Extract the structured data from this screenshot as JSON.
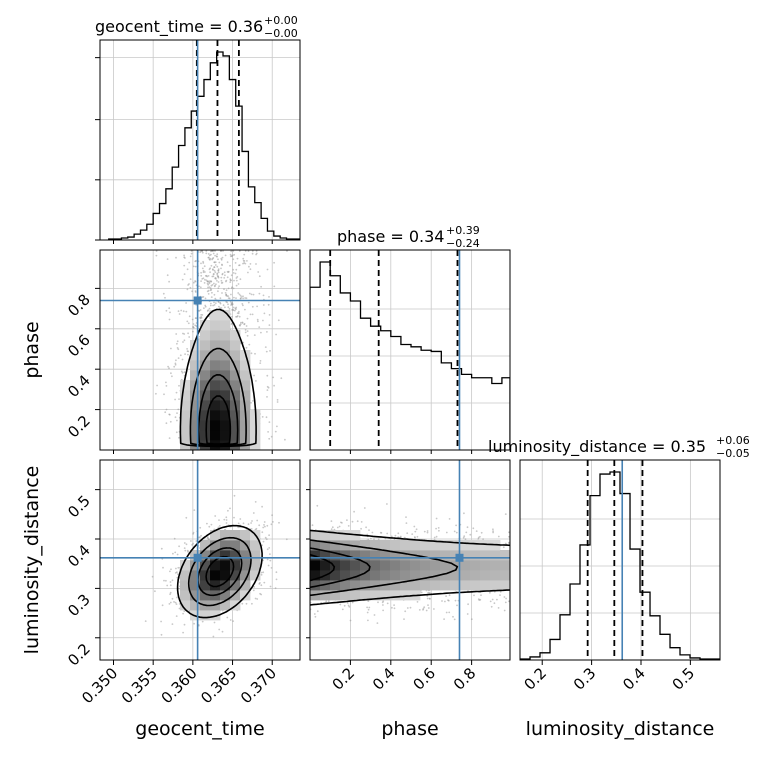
{
  "chart_data": {
    "type": "corner",
    "parameters": [
      {
        "name": "geocent_time",
        "axis_label": "geocent_time",
        "title_prefix": "geocent_time = ",
        "median": "0.36",
        "plus": "+0.00",
        "minus": "−0.00",
        "range": [
          0.3483,
          0.3735
        ],
        "ticks": [
          0.35,
          0.355,
          0.36,
          0.365,
          0.37
        ],
        "tick_labels": [
          "0.350",
          "0.355",
          "0.360",
          "0.365",
          "0.370"
        ],
        "truth": 0.3606,
        "quantiles": [
          0.3605,
          0.3631,
          0.3658
        ]
      },
      {
        "name": "phase",
        "axis_label": "phase",
        "title_prefix": "phase = ",
        "median": "0.34",
        "plus": "+0.39",
        "minus": "−0.24",
        "range": [
          0.0,
          0.99
        ],
        "ticks": [
          0.2,
          0.4,
          0.6,
          0.8
        ],
        "tick_labels": [
          "0.2",
          "0.4",
          "0.6",
          "0.8"
        ],
        "truth": 0.74,
        "quantiles": [
          0.1,
          0.34,
          0.73
        ]
      },
      {
        "name": "luminosity_distance",
        "axis_label": "luminosity_distance",
        "title_prefix": "luminosity_distance = ",
        "median": "0.35",
        "plus": "+0.06",
        "minus": "−0.05",
        "range": [
          0.155,
          0.56
        ],
        "ticks": [
          0.2,
          0.3,
          0.4,
          0.5
        ],
        "tick_labels": [
          "0.2",
          "0.3",
          "0.4",
          "0.5"
        ],
        "truth": 0.362,
        "quantiles": [
          0.292,
          0.346,
          0.403
        ]
      }
    ],
    "histograms_1d": [
      {
        "param": "geocent_time",
        "bin_edges": [
          0.3494,
          0.3502,
          0.351,
          0.3518,
          0.3526,
          0.3534,
          0.3542,
          0.355,
          0.3558,
          0.3566,
          0.3574,
          0.3582,
          0.359,
          0.3598,
          0.3606,
          0.3614,
          0.3622,
          0.363,
          0.3638,
          0.3646,
          0.3654,
          0.3662,
          0.367,
          0.3678,
          0.3686,
          0.3694,
          0.3702,
          0.371,
          0.3718,
          0.3726,
          0.3735
        ],
        "counts": [
          1,
          1,
          2,
          3,
          6,
          10,
          16,
          27,
          37,
          52,
          74,
          96,
          114,
          131,
          146,
          163,
          180,
          191,
          187,
          163,
          136,
          90,
          54,
          38,
          22,
          9,
          4,
          2,
          1,
          1
        ]
      },
      {
        "param": "phase",
        "bin_edges": [
          0.0,
          0.05,
          0.1,
          0.15,
          0.2,
          0.25,
          0.3,
          0.35,
          0.4,
          0.45,
          0.5,
          0.55,
          0.6,
          0.65,
          0.7,
          0.75,
          0.8,
          0.85,
          0.9,
          0.95,
          0.99
        ],
        "counts": [
          142,
          164,
          152,
          137,
          130,
          115,
          108,
          104,
          99,
          92,
          90,
          87,
          86,
          76,
          71,
          66,
          63,
          63,
          58,
          63
        ]
      },
      {
        "param": "luminosity_distance",
        "bin_edges": [
          0.155,
          0.1753,
          0.1955,
          0.2158,
          0.236,
          0.2563,
          0.2765,
          0.2968,
          0.317,
          0.3373,
          0.3575,
          0.3778,
          0.398,
          0.4183,
          0.4385,
          0.4588,
          0.479,
          0.4993,
          0.5195,
          0.5398,
          0.56
        ],
        "counts": [
          1,
          3,
          7,
          20,
          44,
          74,
          112,
          160,
          181,
          183,
          162,
          108,
          66,
          43,
          25,
          12,
          5,
          2,
          1,
          1
        ]
      }
    ],
    "scatter_2d": [
      {
        "x_param": "geocent_time",
        "y_param": "phase",
        "truth_point": [
          0.3606,
          0.74
        ],
        "density_peak": [
          0.3632,
          0.14
        ],
        "contour_levels": 4
      },
      {
        "x_param": "geocent_time",
        "y_param": "luminosity_distance",
        "truth_point": [
          0.3606,
          0.362
        ],
        "density_peak": [
          0.3634,
          0.334
        ],
        "contour_levels": 4
      },
      {
        "x_param": "phase",
        "y_param": "luminosity_distance",
        "truth_point": [
          0.74,
          0.362
        ],
        "density_peak": [
          0.14,
          0.342
        ],
        "contour_levels": 4
      }
    ],
    "truth_color": "#4682b4",
    "grid": true
  }
}
